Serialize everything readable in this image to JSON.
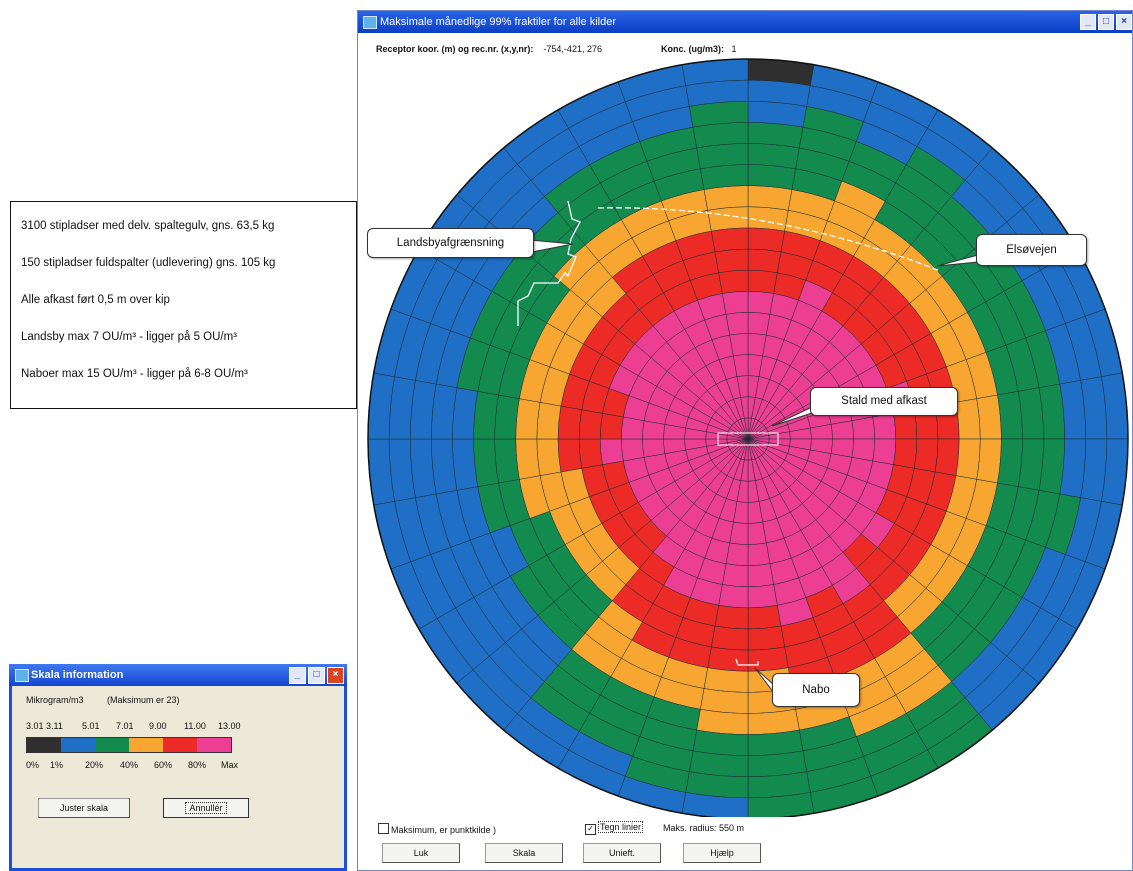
{
  "main_window": {
    "title": "Maksimale månedlige 99% fraktiler for alle kilder",
    "receptor_label": "Receptor koor. (m) og rec.nr. (x,y,nr):",
    "receptor_value": "-754,-421, 276",
    "konc_label": "Konc. (ug/m3):",
    "konc_value": "1"
  },
  "info_box": {
    "lines": [
      "3100 stipladser med delv. spaltegulv, gns. 63,5 kg",
      "150 stipladser fuldspalter (udlevering) gns. 105 kg",
      "Alle afkast ført 0,5 m over kip",
      "Landsby max 7 OU/m³ - ligger på 5 OU/m³",
      "Naboer max 15 OU/m³ - ligger på 6-8 OU/m³"
    ]
  },
  "callouts": {
    "landsby": "Landsbyafgrænsning",
    "elsovejen": "Elsøvejen",
    "stald": "Stald med afkast",
    "nabo": "Nabo"
  },
  "bottom_bar": {
    "maks_label": "Maksimum, er punktkilde )",
    "tegn_linier_label": "Tegn linier",
    "tegn_linier_checked": true,
    "radius_label": "Maks. radius: 550 m",
    "buttons": {
      "luk": "Luk",
      "skala": "Skala",
      "unieft": "Unieft.",
      "hjaelp": "Hjælp"
    }
  },
  "scale_dialog": {
    "title": "Skala information",
    "unit": "Mikrogram/m3",
    "max_note": "(Maksimum er 23)",
    "thresholds": [
      "3.01",
      "3.11",
      "5.01",
      "7.01",
      "9.00",
      "11.00",
      "13.00"
    ],
    "percent_labels": [
      "0%",
      "1%",
      "20%",
      "40%",
      "60%",
      "80%",
      "Max"
    ],
    "buttons": {
      "juster": "Juster skala",
      "annuller": "Annullér"
    }
  },
  "colors": {
    "black": "#2f2f2f",
    "blue": "#1f6fc6",
    "green": "#138a4e",
    "orange": "#f7a731",
    "red": "#ec2a26",
    "pink": "#ec3f93",
    "border": "#1b2a33",
    "title_bar": "#0b3fc4"
  }
}
